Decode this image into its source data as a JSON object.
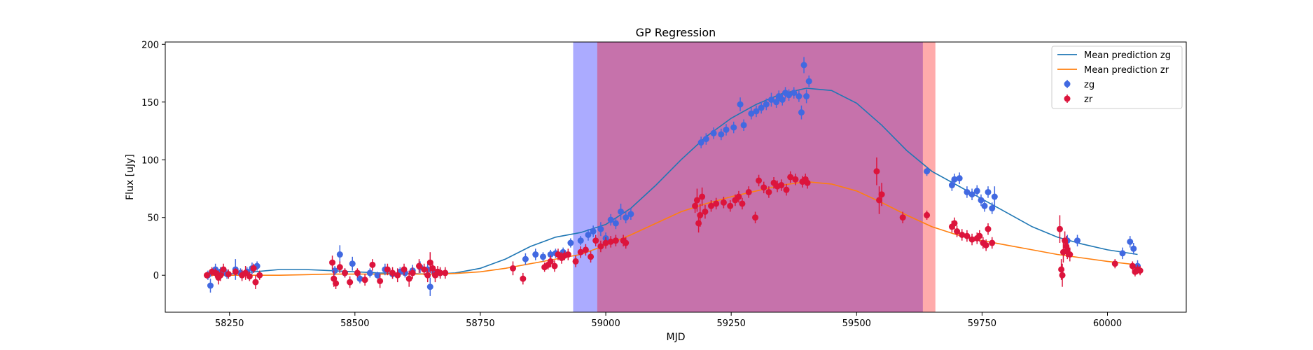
{
  "chart_data": {
    "type": "scatter",
    "title": "GP Regression",
    "xlabel": "MJD",
    "ylabel": "Flux [uJy]",
    "xlim": [
      58122,
      60157
    ],
    "ylim": [
      -32,
      202
    ],
    "xticks": [
      58250,
      58500,
      58750,
      59000,
      59250,
      59500,
      59750,
      60000
    ],
    "xtick_labels": [
      "58250",
      "58500",
      "58750",
      "59000",
      "59250",
      "59500",
      "59750",
      "60000"
    ],
    "yticks": [
      0,
      50,
      100,
      150,
      200
    ],
    "ytick_labels": [
      "0",
      "50",
      "100",
      "150",
      "200"
    ],
    "grid": false,
    "legend_position": "top-right",
    "legend": [
      {
        "label": "Mean prediction zg",
        "kind": "line",
        "color": "#1f77b4"
      },
      {
        "label": "Mean prediction zr",
        "kind": "line",
        "color": "#ff7f0e"
      },
      {
        "label": "zg",
        "kind": "marker",
        "color": "#4169e1"
      },
      {
        "label": "zr",
        "kind": "marker",
        "color": "#dc143c"
      }
    ],
    "shaded_regions": [
      {
        "x0": 58935,
        "x1": 59632,
        "color": "#0000ff",
        "opacity": 0.33
      },
      {
        "x0": 58983,
        "x1": 59657,
        "color": "#ff0000",
        "opacity": 0.33
      }
    ],
    "lines": [
      {
        "name": "Mean prediction zg",
        "color": "#1f77b4",
        "x": [
          58210,
          58250,
          58300,
          58350,
          58400,
          58450,
          58500,
          58550,
          58600,
          58650,
          58700,
          58750,
          58800,
          58850,
          58900,
          58950,
          59000,
          59050,
          59100,
          59150,
          59200,
          59250,
          59300,
          59350,
          59400,
          59450,
          59500,
          59550,
          59600,
          59650,
          59700,
          59750,
          59800,
          59850,
          59900,
          59950,
          60000,
          60060
        ],
        "y": [
          0,
          1,
          3,
          5,
          5,
          4,
          3,
          2,
          1.5,
          1,
          2,
          6,
          14,
          25,
          33,
          37,
          44,
          58,
          78,
          100,
          120,
          136,
          148,
          157,
          162,
          160,
          149,
          130,
          108,
          90,
          78,
          66,
          54,
          42,
          33,
          27,
          22,
          18
        ]
      },
      {
        "name": "Mean prediction zr",
        "color": "#ff7f0e",
        "x": [
          58210,
          58250,
          58300,
          58350,
          58400,
          58450,
          58500,
          58550,
          58600,
          58650,
          58700,
          58750,
          58800,
          58850,
          58900,
          58950,
          59000,
          59050,
          59100,
          59150,
          59200,
          59250,
          59300,
          59350,
          59400,
          59450,
          59500,
          59550,
          59600,
          59650,
          59700,
          59750,
          59800,
          59850,
          59900,
          59950,
          60000,
          60060
        ],
        "y": [
          0,
          0,
          0,
          0,
          0.5,
          1,
          1,
          1,
          1,
          1,
          1.5,
          3,
          6,
          10,
          14,
          18,
          26,
          35,
          45,
          55,
          62,
          68,
          73,
          78,
          81,
          79,
          73,
          63,
          52,
          42,
          35,
          30,
          26,
          22,
          18,
          15,
          12,
          9
        ]
      }
    ],
    "series": [
      {
        "name": "zg",
        "color": "#4169e1",
        "x": [
          58207,
          58212,
          58222,
          58232,
          58245,
          58262,
          58272,
          58285,
          58295,
          58305,
          58460,
          58470,
          58480,
          58495,
          58510,
          58530,
          58545,
          58560,
          58575,
          58590,
          58600,
          58615,
          58630,
          58645,
          58650,
          58658,
          58670,
          58840,
          58860,
          58875,
          58890,
          58900,
          58915,
          58930,
          58950,
          58965,
          58975,
          58990,
          59000,
          59010,
          59020,
          59030,
          59040,
          59050,
          59190,
          59200,
          59215,
          59230,
          59240,
          59255,
          59268,
          59275,
          59290,
          59300,
          59310,
          59320,
          59330,
          59340,
          59345,
          59352,
          59358,
          59365,
          59375,
          59385,
          59390,
          59395,
          59400,
          59405,
          59640,
          59690,
          59695,
          59705,
          59720,
          59730,
          59740,
          59748,
          59755,
          59762,
          59770,
          59775,
          59920,
          59940,
          60030,
          60045,
          60052,
          60060
        ],
        "y": [
          0,
          -9,
          5,
          3,
          1,
          5,
          2,
          3,
          6,
          8,
          4,
          18,
          2,
          10,
          -3,
          2,
          0,
          5,
          1,
          3,
          2,
          4,
          7,
          5,
          -10,
          3,
          2,
          14,
          18,
          16,
          18,
          19,
          20,
          28,
          30,
          35,
          38,
          40,
          32,
          48,
          45,
          55,
          50,
          53,
          115,
          118,
          123,
          122,
          126,
          128,
          148,
          130,
          140,
          142,
          145,
          148,
          152,
          150,
          155,
          152,
          158,
          156,
          158,
          155,
          141,
          182,
          155,
          168,
          90,
          78,
          83,
          84,
          72,
          70,
          73,
          65,
          60,
          72,
          58,
          68,
          30,
          30,
          19,
          29,
          23,
          8
        ],
        "err": [
          4,
          6,
          5,
          4,
          4,
          9,
          4,
          4,
          5,
          4,
          4,
          8,
          4,
          6,
          4,
          4,
          3,
          5,
          4,
          4,
          4,
          5,
          5,
          5,
          8,
          4,
          4,
          5,
          5,
          4,
          4,
          4,
          4,
          4,
          4,
          5,
          5,
          6,
          5,
          5,
          5,
          7,
          5,
          5,
          5,
          5,
          5,
          5,
          5,
          5,
          6,
          5,
          5,
          5,
          5,
          5,
          6,
          5,
          5,
          5,
          5,
          5,
          5,
          5,
          6,
          7,
          6,
          5,
          4,
          5,
          5,
          5,
          5,
          5,
          5,
          5,
          5,
          5,
          5,
          9,
          5,
          5,
          5,
          5,
          5,
          5
        ]
      },
      {
        "name": "zr",
        "color": "#dc143c",
        "x": [
          58205,
          58215,
          58222,
          58228,
          58232,
          58238,
          58248,
          58262,
          58275,
          58282,
          58290,
          58298,
          58302,
          58310,
          58455,
          58458,
          58462,
          58470,
          58480,
          58490,
          58505,
          58520,
          58535,
          58550,
          58565,
          58575,
          58585,
          58598,
          58608,
          58615,
          58628,
          58638,
          58645,
          58650,
          58655,
          58660,
          58665,
          58670,
          58680,
          58815,
          58835,
          58878,
          58885,
          58890,
          58898,
          58905,
          58912,
          58918,
          58925,
          58940,
          58950,
          58960,
          58970,
          58980,
          58990,
          59000,
          59010,
          59020,
          59035,
          59040,
          59178,
          59182,
          59185,
          59188,
          59192,
          59198,
          59210,
          59220,
          59235,
          59248,
          59258,
          59265,
          59272,
          59285,
          59298,
          59305,
          59315,
          59325,
          59335,
          59342,
          59350,
          59360,
          59368,
          59378,
          59392,
          59398,
          59402,
          59540,
          59545,
          59550,
          59592,
          59640,
          59690,
          59695,
          59700,
          59710,
          59720,
          59730,
          59740,
          59745,
          59752,
          59758,
          59762,
          59770,
          59905,
          59908,
          59910,
          59912,
          59915,
          59918,
          59920,
          59925,
          60015,
          60050,
          60055,
          60060,
          60065
        ],
        "y": [
          0,
          3,
          2,
          -2,
          0,
          5,
          1,
          3,
          0,
          2,
          -1,
          6,
          -6,
          0,
          11,
          -3,
          -7,
          7,
          2,
          -6,
          2,
          -4,
          9,
          -5,
          5,
          2,
          0,
          5,
          -3,
          2,
          8,
          5,
          0,
          11,
          6,
          0,
          3,
          2,
          2,
          6,
          -3,
          7,
          9,
          12,
          8,
          18,
          15,
          17,
          18,
          12,
          20,
          22,
          16,
          30,
          25,
          28,
          29,
          30,
          30,
          28,
          60,
          65,
          45,
          52,
          68,
          55,
          60,
          62,
          63,
          60,
          65,
          68,
          62,
          72,
          50,
          82,
          76,
          72,
          80,
          77,
          78,
          74,
          85,
          83,
          81,
          83,
          80,
          90,
          65,
          70,
          50,
          52,
          42,
          45,
          38,
          35,
          34,
          31,
          32,
          34,
          28,
          26,
          40,
          28,
          40,
          5,
          0,
          20,
          30,
          25,
          22,
          18,
          10,
          8,
          3,
          5,
          4
        ],
        "err": [
          3,
          4,
          4,
          6,
          5,
          5,
          4,
          3,
          5,
          6,
          4,
          4,
          6,
          4,
          6,
          7,
          5,
          5,
          4,
          5,
          4,
          5,
          5,
          6,
          5,
          5,
          6,
          5,
          7,
          5,
          6,
          5,
          6,
          9,
          5,
          6,
          5,
          5,
          5,
          6,
          5,
          4,
          4,
          5,
          5,
          5,
          5,
          4,
          5,
          5,
          5,
          5,
          5,
          5,
          5,
          5,
          5,
          5,
          5,
          5,
          6,
          10,
          8,
          10,
          8,
          6,
          5,
          5,
          5,
          5,
          5,
          5,
          5,
          5,
          5,
          5,
          5,
          5,
          5,
          5,
          5,
          5,
          5,
          5,
          5,
          5,
          5,
          12,
          12,
          10,
          5,
          4,
          5,
          5,
          5,
          5,
          5,
          5,
          5,
          5,
          5,
          5,
          5,
          5,
          12,
          9,
          10,
          9,
          8,
          9,
          8,
          6,
          4,
          4,
          4,
          4,
          4
        ]
      }
    ]
  }
}
